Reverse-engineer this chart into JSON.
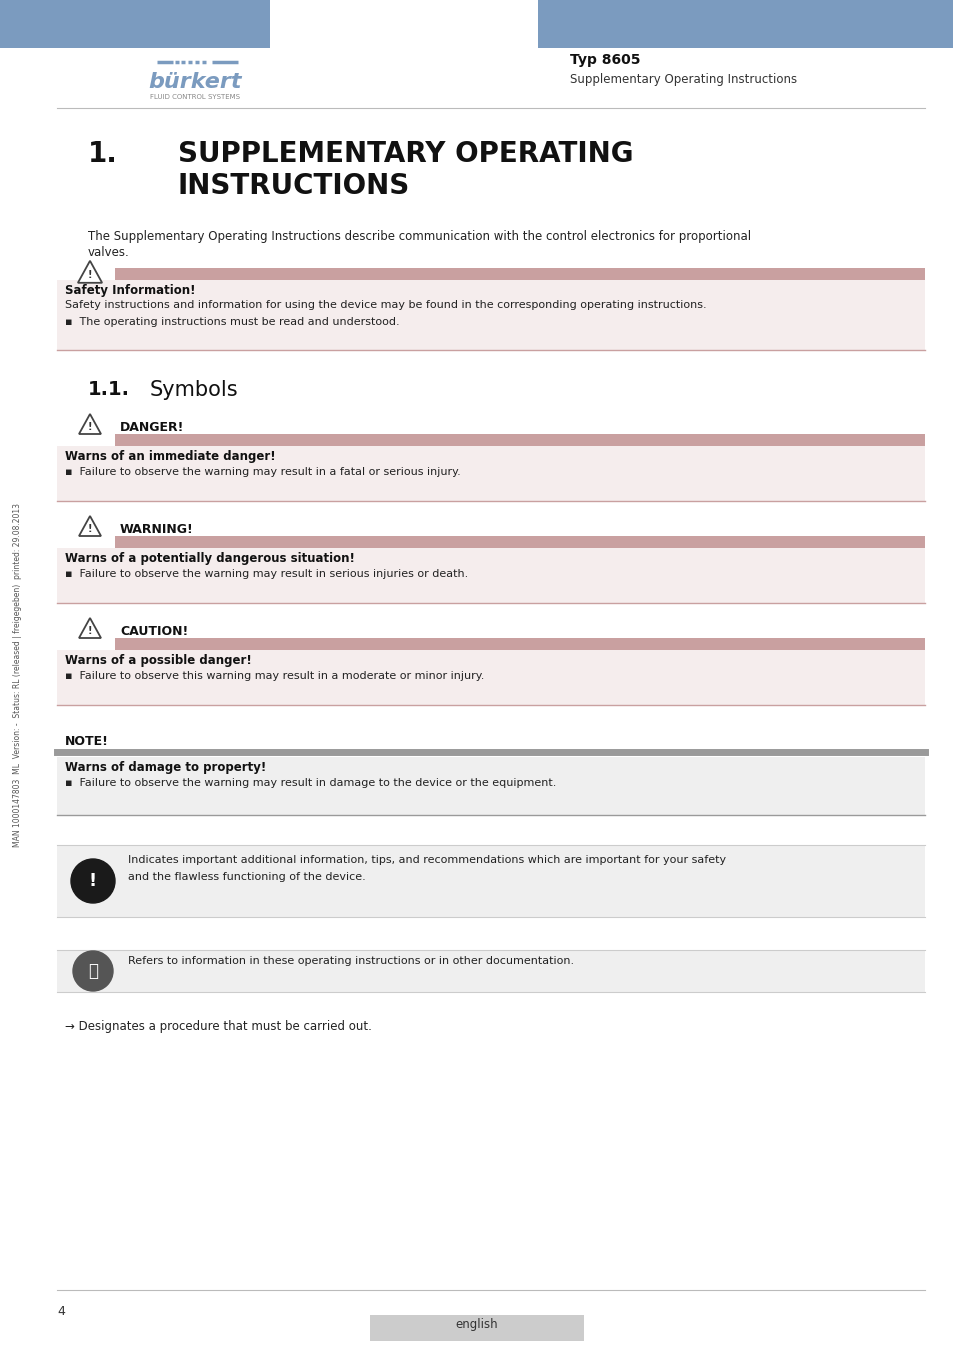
{
  "bg_color": "#ffffff",
  "header_blue": "#7b9bbf",
  "pink_bar_color": "#c9a0a0",
  "light_pink_bg": "#f5eded",
  "light_gray_bg": "#efefef",
  "gray_bar_color": "#9a9a9a",
  "typ_label": "Typ 8605",
  "supp_label": "Supplementary Operating Instructions",
  "page_num": "4",
  "lang_label": "english",
  "side_text": "MAN 1000147803  ML  Version: -  Status: RL (released | freigegeben)  printed: 29.08.2013"
}
